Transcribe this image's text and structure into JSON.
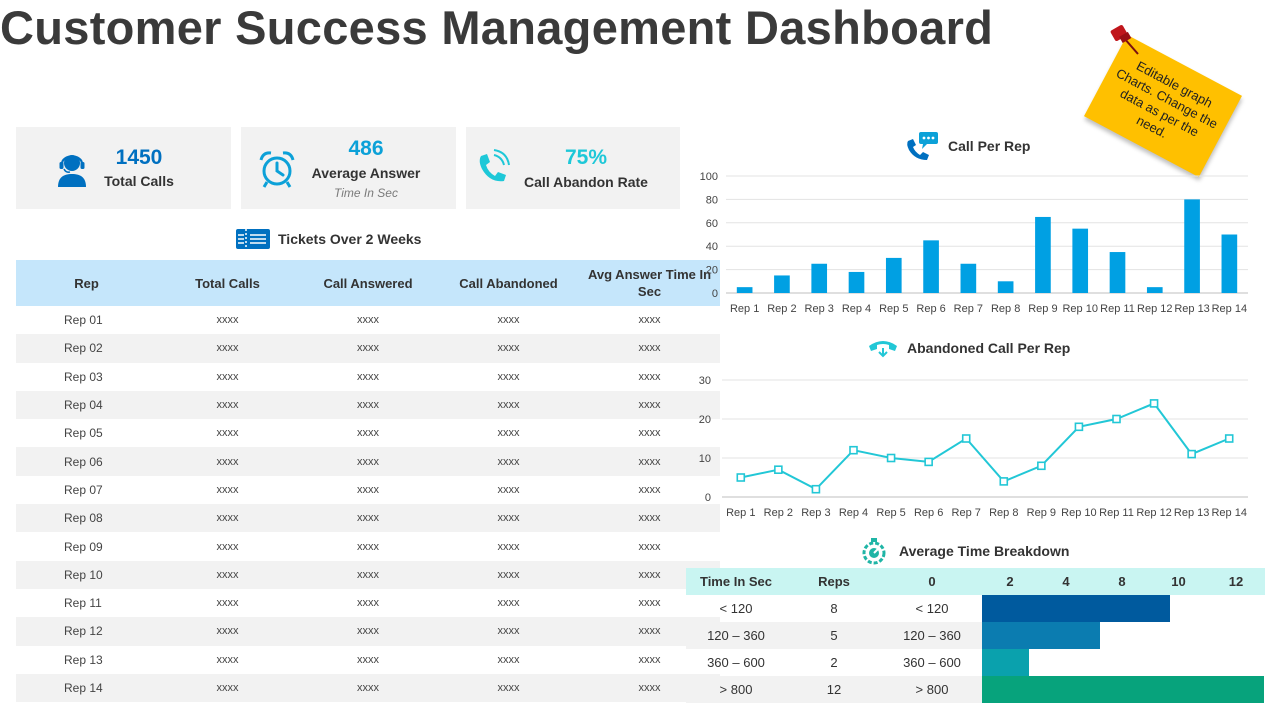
{
  "header": {
    "title": "Customer Success Management Dashboard"
  },
  "kpis": [
    {
      "value": "1450",
      "label": "Total Calls",
      "sub": "",
      "icon": "agent-headset-icon",
      "color": "#0070c0"
    },
    {
      "value": "486",
      "label": "Average Answer",
      "sub": "Time In Sec",
      "icon": "alarm-clock-icon",
      "color": "#0ca1d8"
    },
    {
      "value": "75%",
      "label": "Call Abandon Rate",
      "sub": "",
      "icon": "phone-ringing-icon",
      "color": "#1ec8d8"
    }
  ],
  "tickets": {
    "title": "Tickets Over 2 Weeks",
    "icon": "ticket-icon",
    "columns": [
      "Rep",
      "Total Calls",
      "Call Answered",
      "Call Abandoned",
      "Avg Answer Time In Sec"
    ],
    "rows": [
      [
        "Rep 01",
        "xxxx",
        "xxxx",
        "xxxx",
        "xxxx"
      ],
      [
        "Rep 02",
        "xxxx",
        "xxxx",
        "xxxx",
        "xxxx"
      ],
      [
        "Rep 03",
        "xxxx",
        "xxxx",
        "xxxx",
        "xxxx"
      ],
      [
        "Rep 04",
        "xxxx",
        "xxxx",
        "xxxx",
        "xxxx"
      ],
      [
        "Rep 05",
        "xxxx",
        "xxxx",
        "xxxx",
        "xxxx"
      ],
      [
        "Rep 06",
        "xxxx",
        "xxxx",
        "xxxx",
        "xxxx"
      ],
      [
        "Rep 07",
        "xxxx",
        "xxxx",
        "xxxx",
        "xxxx"
      ],
      [
        "Rep 08",
        "xxxx",
        "xxxx",
        "xxxx",
        "xxxx"
      ],
      [
        "Rep 09",
        "xxxx",
        "xxxx",
        "xxxx",
        "xxxx"
      ],
      [
        "Rep 10",
        "xxxx",
        "xxxx",
        "xxxx",
        "xxxx"
      ],
      [
        "Rep 11",
        "xxxx",
        "xxxx",
        "xxxx",
        "xxxx"
      ],
      [
        "Rep 12",
        "xxxx",
        "xxxx",
        "xxxx",
        "xxxx"
      ],
      [
        "Rep 13",
        "xxxx",
        "xxxx",
        "xxxx",
        "xxxx"
      ],
      [
        "Rep 14",
        "xxxx",
        "xxxx",
        "xxxx",
        "xxxx"
      ]
    ]
  },
  "sticky_note": {
    "text": "Editable graph Charts. Change the data as per the need.",
    "color": "#ffc000",
    "pin_icon": "pushpin-icon"
  },
  "chart_data": [
    {
      "type": "bar",
      "title": "Call Per Rep",
      "icon": "phone-chat-icon",
      "categories": [
        "Rep 1",
        "Rep 2",
        "Rep 3",
        "Rep 4",
        "Rep 5",
        "Rep 6",
        "Rep 7",
        "Rep 8",
        "Rep 9",
        "Rep 10",
        "Rep 11",
        "Rep 12",
        "Rep 13",
        "Rep 14"
      ],
      "values": [
        5,
        15,
        25,
        18,
        30,
        45,
        25,
        10,
        65,
        55,
        35,
        5,
        80,
        50
      ],
      "ylim": [
        0,
        100
      ],
      "yticks": [
        0,
        20,
        40,
        60,
        80,
        100
      ],
      "grid": true,
      "color": "#00a0e3"
    },
    {
      "type": "line",
      "title": "Abandoned Call Per Rep",
      "icon": "hangup-phone-icon",
      "categories": [
        "Rep 1",
        "Rep 2",
        "Rep 3",
        "Rep 4",
        "Rep 5",
        "Rep 6",
        "Rep 7",
        "Rep 8",
        "Rep 9",
        "Rep 10",
        "Rep 11",
        "Rep 12",
        "Rep 13",
        "Rep 14"
      ],
      "values": [
        5,
        7,
        2,
        12,
        10,
        9,
        15,
        4,
        8,
        18,
        20,
        24,
        11,
        15
      ],
      "ylim": [
        0,
        30
      ],
      "yticks": [
        0,
        10,
        20,
        30
      ],
      "grid": true,
      "markers": "hollow-square",
      "color": "#22c7d6"
    },
    {
      "type": "bar",
      "orientation": "horizontal",
      "title": "Average Time Breakdown",
      "icon": "stopwatch-gear-icon",
      "headers": [
        "Time In Sec",
        "Reps"
      ],
      "axis_ticks": [
        "0",
        "2",
        "4",
        "8",
        "10",
        "12"
      ],
      "categories": [
        "< 120",
        "120 – 360",
        "360 – 600",
        "> 800"
      ],
      "values": [
        8,
        5,
        2,
        12
      ],
      "bar_colors": [
        "#005a9e",
        "#0b7cb0",
        "#0aa1ad",
        "#07a37c"
      ]
    }
  ]
}
